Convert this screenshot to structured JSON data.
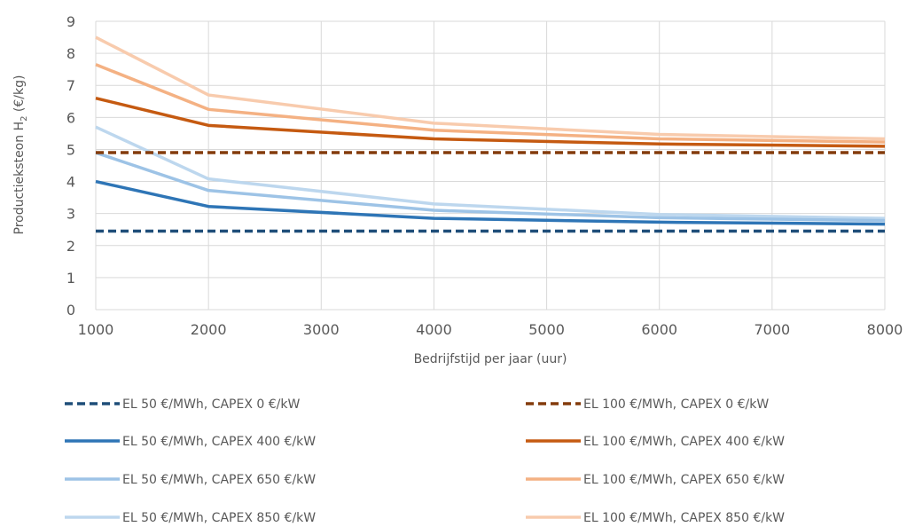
{
  "chart_data": {
    "type": "line",
    "xlabel": "Bedrijfstijd per jaar (uur)",
    "ylabel_main": "Productieksteon H",
    "ylabel_sub": "2",
    "ylabel_unit": " (€/kg)",
    "xlim": [
      1000,
      8000
    ],
    "ylim": [
      0,
      9
    ],
    "x_ticks": [
      1000,
      2000,
      3000,
      4000,
      5000,
      6000,
      7000,
      8000
    ],
    "y_ticks": [
      0,
      1,
      2,
      3,
      4,
      5,
      6,
      7,
      8,
      9
    ],
    "grid": true,
    "legend_position": "bottom",
    "x": [
      1000,
      2000,
      4000,
      6000,
      8000
    ],
    "series": [
      {
        "name": "EL 50 €/MWh, CAPEX 0 €/kW",
        "color": "#1f4e79",
        "dash": true,
        "values": [
          2.45,
          2.45,
          2.45,
          2.45,
          2.45
        ]
      },
      {
        "name": "EL 100 €/MWh, CAPEX 0 €/kW",
        "color": "#843c0c",
        "dash": true,
        "values": [
          4.9,
          4.9,
          4.9,
          4.9,
          4.9
        ]
      },
      {
        "name": "EL 50 €/MWh, CAPEX 400 €/kW",
        "color": "#2e75b6",
        "dash": false,
        "values": [
          4.0,
          3.22,
          2.85,
          2.73,
          2.67
        ]
      },
      {
        "name": "EL 100 €/MWh, CAPEX 400 €/kW",
        "color": "#c55a11",
        "dash": false,
        "values": [
          6.6,
          5.75,
          5.33,
          5.17,
          5.1
        ]
      },
      {
        "name": "EL 50 €/MWh, CAPEX 650 €/kW",
        "color": "#9dc3e6",
        "dash": false,
        "values": [
          4.9,
          3.72,
          3.1,
          2.87,
          2.78
        ]
      },
      {
        "name": "EL 100 €/MWh, CAPEX 650 €/kW",
        "color": "#f4b183",
        "dash": false,
        "values": [
          7.65,
          6.25,
          5.6,
          5.33,
          5.23
        ]
      },
      {
        "name": "EL 50 €/MWh, CAPEX 850 €/kW",
        "color": "#bdd7ee",
        "dash": false,
        "values": [
          5.7,
          4.08,
          3.3,
          2.97,
          2.85
        ]
      },
      {
        "name": "EL 100 €/MWh, CAPEX 850 €/kW",
        "color": "#f8cbad",
        "dash": false,
        "values": [
          8.5,
          6.7,
          5.82,
          5.47,
          5.33
        ]
      }
    ]
  }
}
